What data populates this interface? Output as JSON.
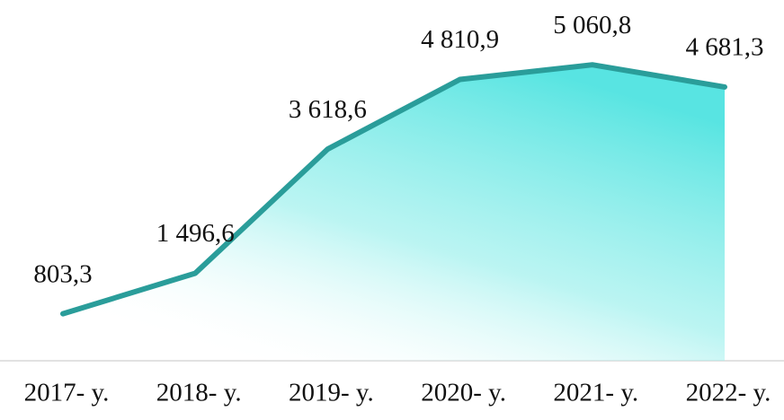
{
  "chart_data": {
    "type": "area",
    "categories": [
      "2017- y.",
      "2018- y.",
      "2019- y.",
      "2020- y.",
      "2021- y.",
      "2022- y."
    ],
    "values": [
      803.3,
      1496.6,
      3618.6,
      4810.9,
      5060.8,
      4681.3
    ],
    "value_labels": [
      "803,3",
      "1 496,6",
      "3 618,6",
      "4 810,9",
      "5 060,8",
      "4 681,3"
    ],
    "color": "#2a9d9a",
    "ylim": [
      0,
      6000
    ]
  }
}
